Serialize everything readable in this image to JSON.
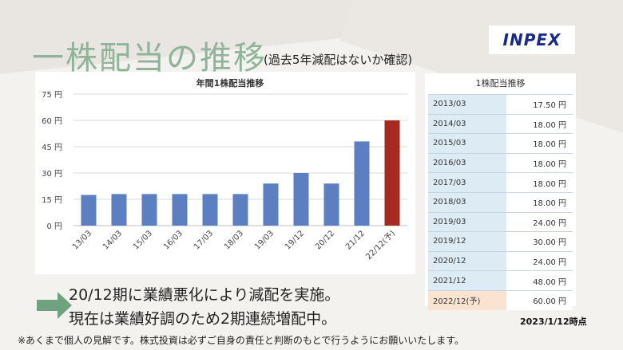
{
  "page": {
    "title": "一株配当の推移",
    "subtitle": "(過去5年減配はないか確認)",
    "logo_text": "INPEX",
    "note_line1": "20/12期に業績悪化により減配を実施。",
    "note_line2": "現在は業績好調のため2期連続増配中。",
    "date_stamp": "2023/1/12時点",
    "disclaimer": "※あくまで個人の見解です。株式投資は必ずご自身の責任と判断のもとで行うようにお願いいたします。"
  },
  "chart_data": {
    "type": "bar",
    "title": "年間1株配当推移",
    "categories": [
      "13/03",
      "14/03",
      "15/03",
      "16/03",
      "17/03",
      "18/03",
      "19/03",
      "19/12",
      "20/12",
      "21/12",
      "22/12(予)"
    ],
    "values": [
      17.5,
      18,
      18,
      18,
      18,
      18,
      24,
      30,
      24,
      48,
      60
    ],
    "forecast_index": 10,
    "ylim": [
      0,
      75
    ],
    "yticks": [
      0,
      15,
      30,
      45,
      60,
      75
    ],
    "ytick_labels": [
      "0 円",
      "15 円",
      "30 円",
      "45 円",
      "60 円",
      "75 円"
    ],
    "grid": true,
    "colors": {
      "bar": "#5b7fc0",
      "forecast": "#a52a22",
      "grid": "#d9d9d9"
    }
  },
  "table": {
    "title": "1株配当推移",
    "rows": [
      {
        "period": "2013/03",
        "value": "17.50 円"
      },
      {
        "period": "2014/03",
        "value": "18.00 円"
      },
      {
        "period": "2015/03",
        "value": "18.00 円"
      },
      {
        "period": "2016/03",
        "value": "18.00 円"
      },
      {
        "period": "2017/03",
        "value": "18.00 円"
      },
      {
        "period": "2018/03",
        "value": "18.00 円"
      },
      {
        "period": "2019/03",
        "value": "24.00 円"
      },
      {
        "period": "2019/12",
        "value": "30.00 円"
      },
      {
        "period": "2020/12",
        "value": "24.00 円"
      },
      {
        "period": "2021/12",
        "value": "48.00 円"
      },
      {
        "period": "2022/12(予)",
        "value": "60.00 円"
      }
    ]
  }
}
